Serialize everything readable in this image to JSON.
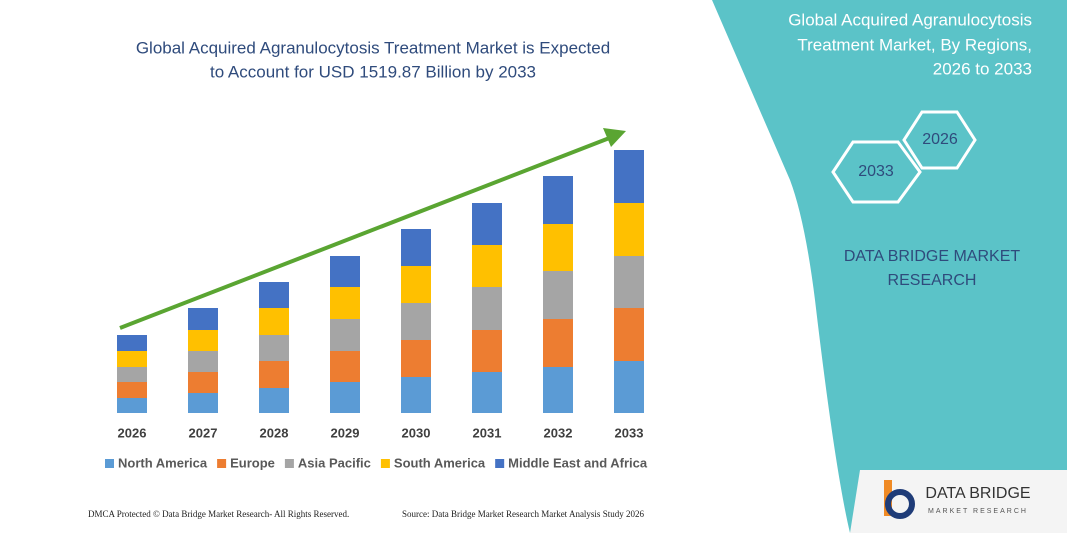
{
  "chart_data": {
    "type": "bar",
    "stacked": true,
    "title": [
      "Global Acquired Agranulocytosis Treatment Market is Expected",
      "to Account for USD 1519.87 Billion by 2033"
    ],
    "categories": [
      "2026",
      "2027",
      "2028",
      "2029",
      "2030",
      "2031",
      "2032",
      "2033"
    ],
    "series": [
      {
        "name": "North America",
        "color": "#5b9bd5",
        "values": [
          15,
          20,
          25,
          31,
          36,
          41,
          46,
          52
        ]
      },
      {
        "name": "Europe",
        "color": "#ed7d31",
        "values": [
          16,
          21,
          27,
          31,
          37,
          42,
          48,
          53
        ]
      },
      {
        "name": "Asia Pacific",
        "color": "#a5a5a5",
        "values": [
          15,
          21,
          26,
          32,
          37,
          43,
          48,
          52
        ]
      },
      {
        "name": "South America",
        "color": "#ffc000",
        "values": [
          16,
          21,
          27,
          32,
          37,
          42,
          47,
          53
        ]
      },
      {
        "name": "Middle East and Africa",
        "color": "#4472c4",
        "values": [
          16,
          22,
          26,
          31,
          37,
          42,
          48,
          53
        ]
      }
    ],
    "legend": "bottom"
  },
  "panel": {
    "title": [
      "Global Acquired Agranulocytosis",
      "Treatment Market, By Regions,",
      "2026 to 2033"
    ],
    "hexagons": [
      "2026",
      "2033"
    ],
    "brand": [
      "DATA BRIDGE MARKET",
      "RESEARCH"
    ]
  },
  "logo": {
    "name": "DATA BRIDGE",
    "tagline": "MARKET RESEARCH"
  },
  "footer": {
    "left": "DMCA Protected © Data Bridge Market Research- All Rights Reserved.",
    "right": "Source: Data Bridge Market Research Market Analysis Study 2026"
  }
}
